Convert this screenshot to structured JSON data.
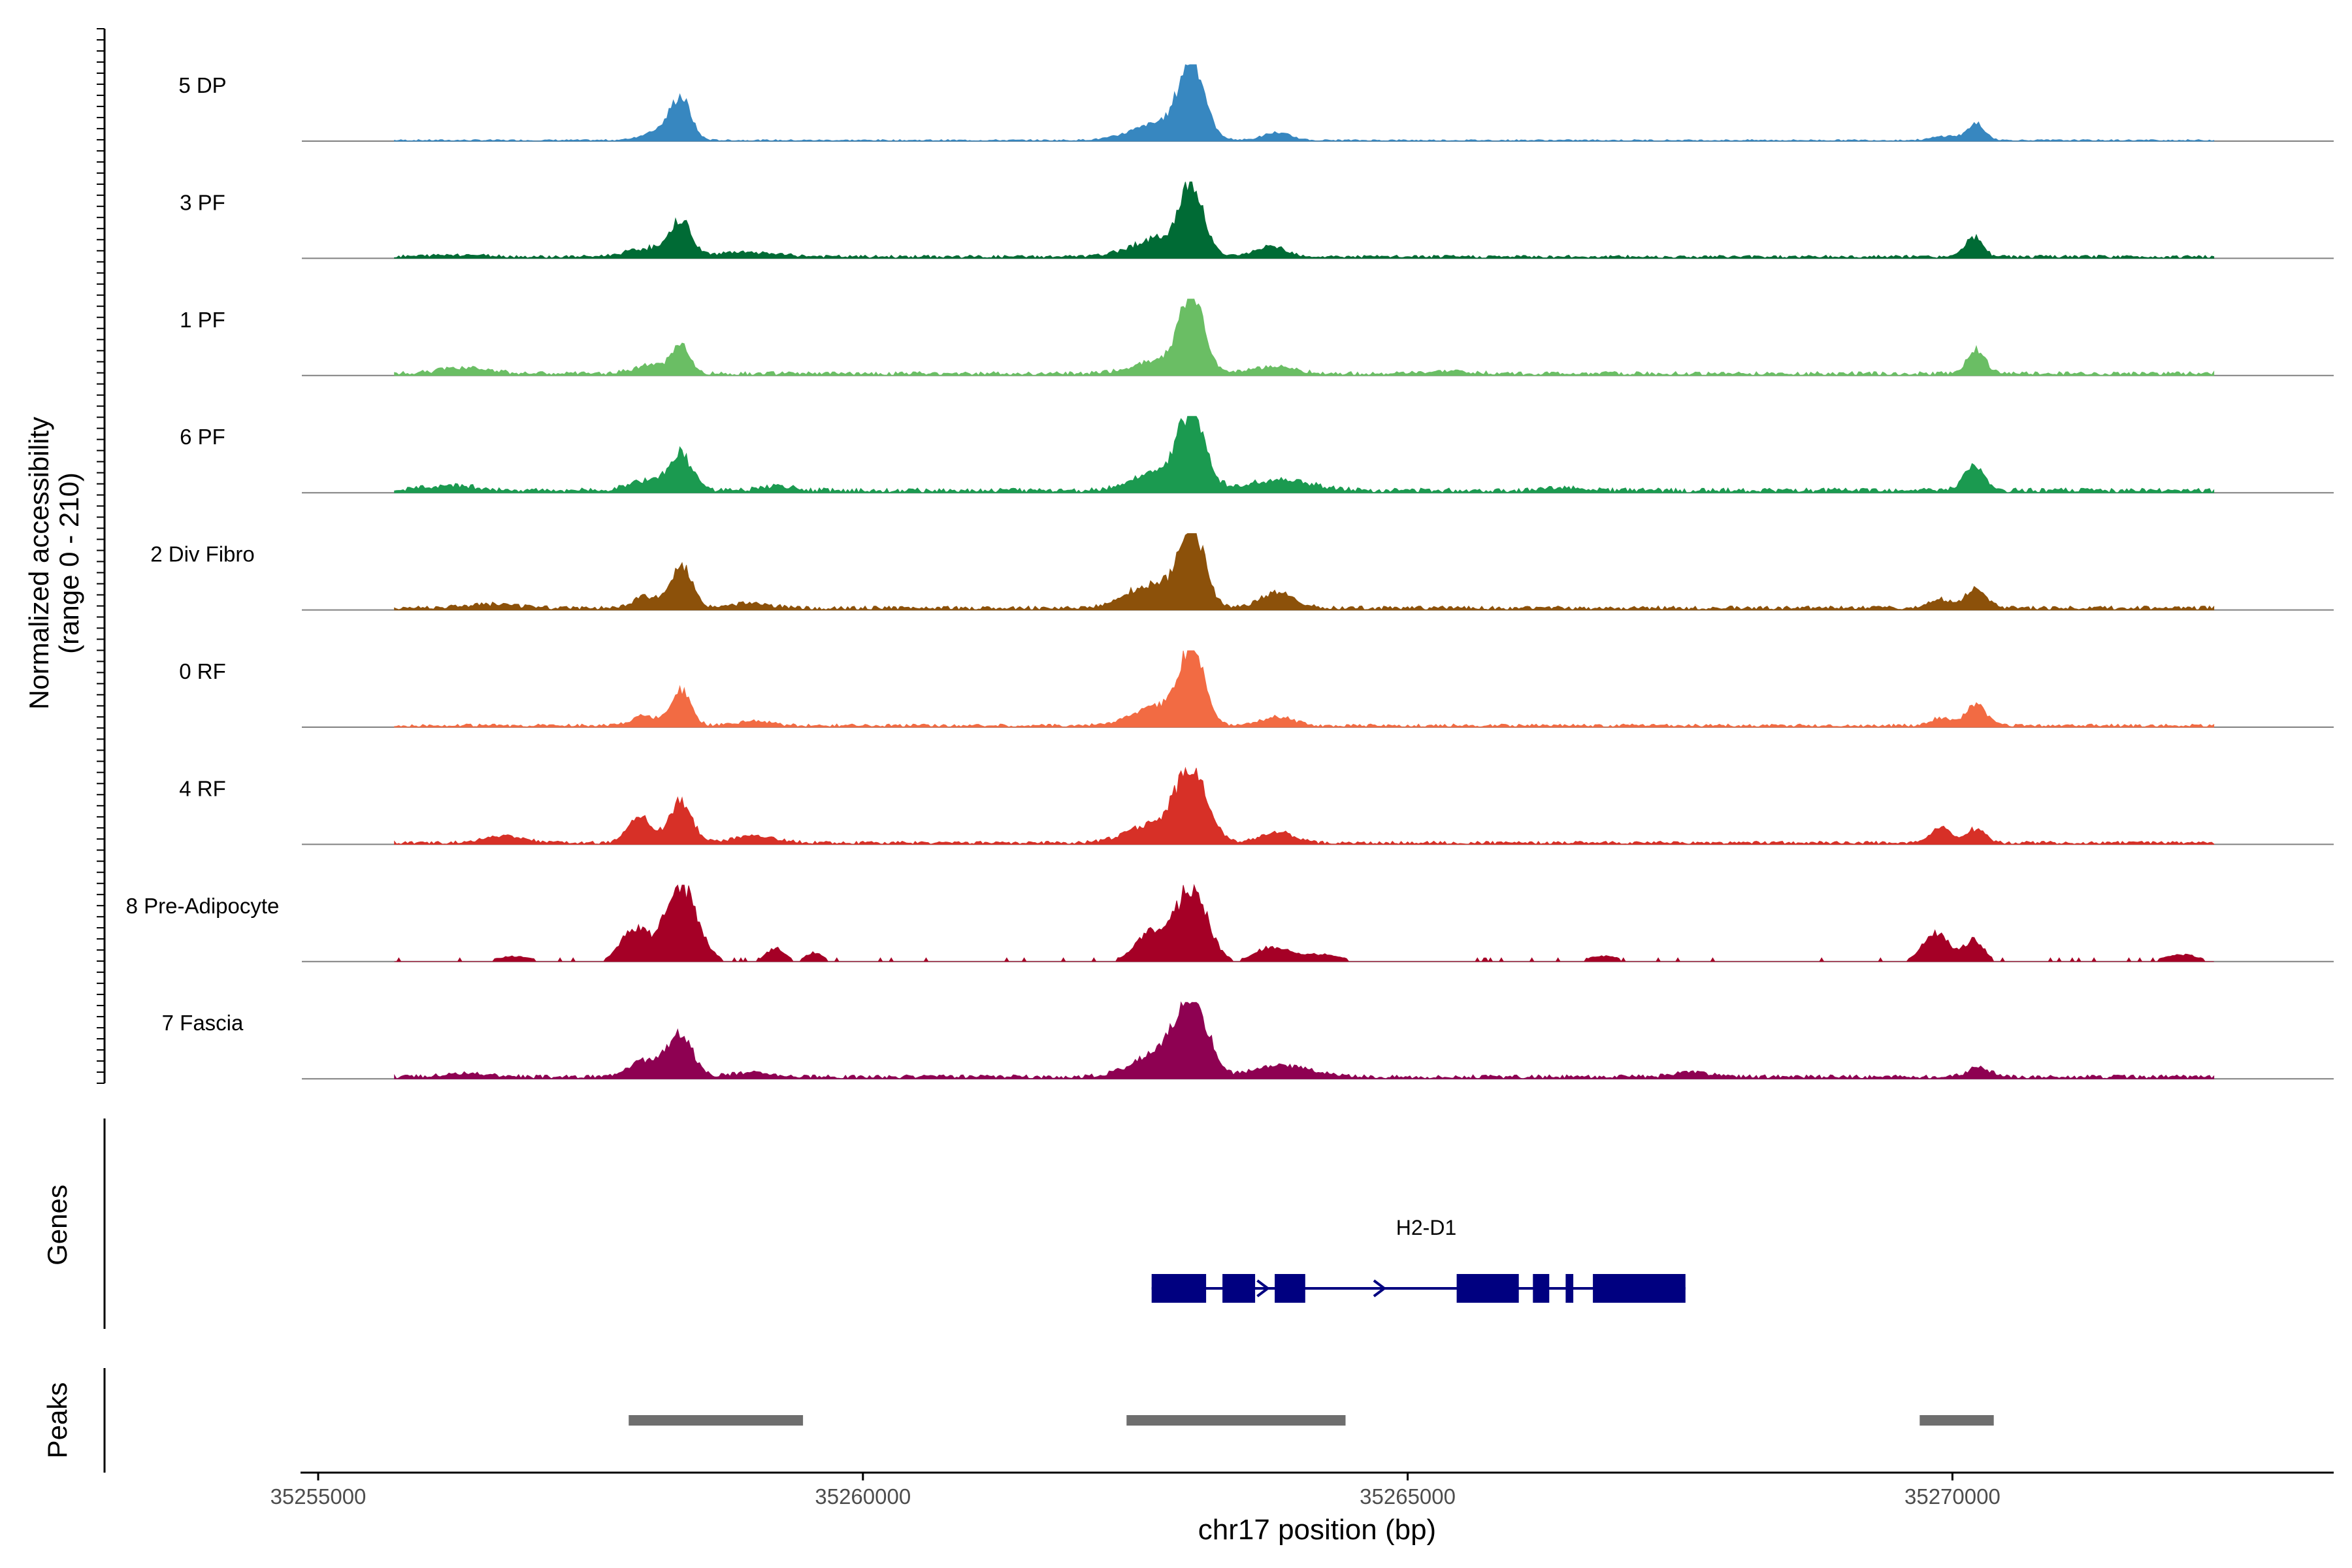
{
  "chart_data": {
    "type": "area",
    "title": "",
    "ylabel_line1": "Normalized accessibility",
    "ylabel_line2": "(range 0 - 210)",
    "y_range": [
      0,
      210
    ],
    "xlabel": "chr17 position (bp)",
    "x_range": [
      35254850,
      35273500
    ],
    "x_ticks": [
      {
        "value": 35255000,
        "label": "35255000"
      },
      {
        "value": 35260000,
        "label": "35260000"
      },
      {
        "value": 35265000,
        "label": "35265000"
      },
      {
        "value": 35270000,
        "label": "35270000"
      }
    ],
    "coverage": {
      "start": 35255700,
      "end": 35272400,
      "peak_centers": [
        35258330,
        35263020,
        35270220
      ],
      "tracks": [
        {
          "name": "5 DP",
          "color": "#3787C0",
          "baseline": 2,
          "peaks": [
            [
              35258330,
              110,
              90
            ],
            [
              35258150,
              30,
              150
            ],
            [
              35263020,
              210,
              110
            ],
            [
              35262750,
              50,
              260
            ],
            [
              35263800,
              22,
              120
            ],
            [
              35270220,
              45,
              80
            ],
            [
              35269950,
              12,
              120
            ]
          ]
        },
        {
          "name": "3 PF",
          "color": "#006B35",
          "baseline": 4,
          "peaks": [
            [
              35258330,
              95,
              90
            ],
            [
              35258050,
              25,
              200
            ],
            [
              35258900,
              12,
              300
            ],
            [
              35263020,
              190,
              110
            ],
            [
              35262700,
              50,
              240
            ],
            [
              35263750,
              30,
              140
            ],
            [
              35270200,
              55,
              80
            ],
            [
              35256300,
              6,
              250
            ]
          ]
        },
        {
          "name": "1 PF",
          "color": "#6ABE64",
          "baseline": 5,
          "peaks": [
            [
              35258330,
              80,
              80
            ],
            [
              35258050,
              25,
              150
            ],
            [
              35256350,
              18,
              220
            ],
            [
              35263020,
              210,
              110
            ],
            [
              35262750,
              40,
              240
            ],
            [
              35263750,
              20,
              200
            ],
            [
              35270220,
              70,
              80
            ],
            [
              35265400,
              6,
              200
            ]
          ]
        },
        {
          "name": "6 PF",
          "color": "#1B9A50",
          "baseline": 6,
          "peaks": [
            [
              35258330,
              100,
              100
            ],
            [
              35258050,
              30,
              180
            ],
            [
              35256200,
              14,
              250
            ],
            [
              35259200,
              12,
              150
            ],
            [
              35263020,
              210,
              120
            ],
            [
              35262700,
              50,
              220
            ],
            [
              35263800,
              30,
              300
            ],
            [
              35270200,
              70,
              90
            ],
            [
              35266500,
              8,
              200
            ]
          ]
        },
        {
          "name": "2 Div Fibro",
          "color": "#8C510A",
          "baseline": 5,
          "peaks": [
            [
              35258330,
              120,
              100
            ],
            [
              35258000,
              35,
              100
            ],
            [
              35259000,
              15,
              150
            ],
            [
              35263020,
              210,
              120
            ],
            [
              35262650,
              65,
              230
            ],
            [
              35263800,
              45,
              150
            ],
            [
              35270220,
              55,
              90
            ],
            [
              35269900,
              25,
              100
            ],
            [
              35256600,
              10,
              250
            ]
          ]
        },
        {
          "name": "0 RF",
          "color": "#F26B43",
          "baseline": 4,
          "peaks": [
            [
              35258330,
              100,
              90
            ],
            [
              35258000,
              30,
              120
            ],
            [
              35259000,
              14,
              150
            ],
            [
              35263020,
              210,
              110
            ],
            [
              35262700,
              55,
              220
            ],
            [
              35263800,
              25,
              150
            ],
            [
              35270220,
              60,
              90
            ],
            [
              35269900,
              22,
              100
            ]
          ]
        },
        {
          "name": "4 RF",
          "color": "#D73027",
          "baseline": 4,
          "peaks": [
            [
              35258330,
              120,
              100
            ],
            [
              35257950,
              70,
              110
            ],
            [
              35256700,
              22,
              180
            ],
            [
              35259000,
              18,
              200
            ],
            [
              35263020,
              210,
              140
            ],
            [
              35262650,
              50,
              230
            ],
            [
              35263800,
              30,
              150
            ],
            [
              35270220,
              40,
              80
            ],
            [
              35269900,
              45,
              100
            ]
          ]
        },
        {
          "name": "8 Pre-Adipocyte",
          "color": "#A50026",
          "baseline": 0,
          "peaks": [
            [
              35258330,
              210,
              150
            ],
            [
              35257900,
              90,
              120
            ],
            [
              35259200,
              40,
              80
            ],
            [
              35259550,
              25,
              80
            ],
            [
              35263020,
              210,
              140
            ],
            [
              35262650,
              80,
              150
            ],
            [
              35263750,
              40,
              150
            ],
            [
              35264200,
              20,
              200
            ],
            [
              35270200,
              60,
              90
            ],
            [
              35269850,
              80,
              120
            ],
            [
              35256800,
              15,
              150
            ],
            [
              35266800,
              15,
              150
            ],
            [
              35272100,
              20,
              150
            ]
          ]
        },
        {
          "name": "7 Fascia",
          "color": "#8E0152",
          "baseline": 5,
          "peaks": [
            [
              35258330,
              120,
              110
            ],
            [
              35258000,
              50,
              150
            ],
            [
              35259000,
              12,
              200
            ],
            [
              35263020,
              210,
              140
            ],
            [
              35262700,
              65,
              230
            ],
            [
              35263850,
              35,
              250
            ],
            [
              35270250,
              25,
              110
            ],
            [
              35267600,
              14,
              150
            ],
            [
              35256350,
              10,
              200
            ]
          ]
        }
      ]
    },
    "genes_label": "Genes",
    "gene": {
      "name": "H2-D1",
      "start": 35262650,
      "end": 35267550,
      "exons": [
        [
          35262650,
          35263150
        ],
        [
          35263300,
          35263600
        ],
        [
          35263780,
          35264060
        ],
        [
          35265450,
          35266020
        ],
        [
          35266150,
          35266300
        ],
        [
          35266450,
          35266520
        ],
        [
          35266700,
          35267550
        ]
      ],
      "direction_arrows": [
        35262730,
        35263680,
        35264750
      ],
      "color": "#000080"
    },
    "peaks_label": "Peaks",
    "peak_regions": [
      [
        35257850,
        35259450
      ],
      [
        35262420,
        35264430
      ],
      [
        35269700,
        35270380
      ]
    ],
    "peak_color": "#6E6E6E"
  }
}
